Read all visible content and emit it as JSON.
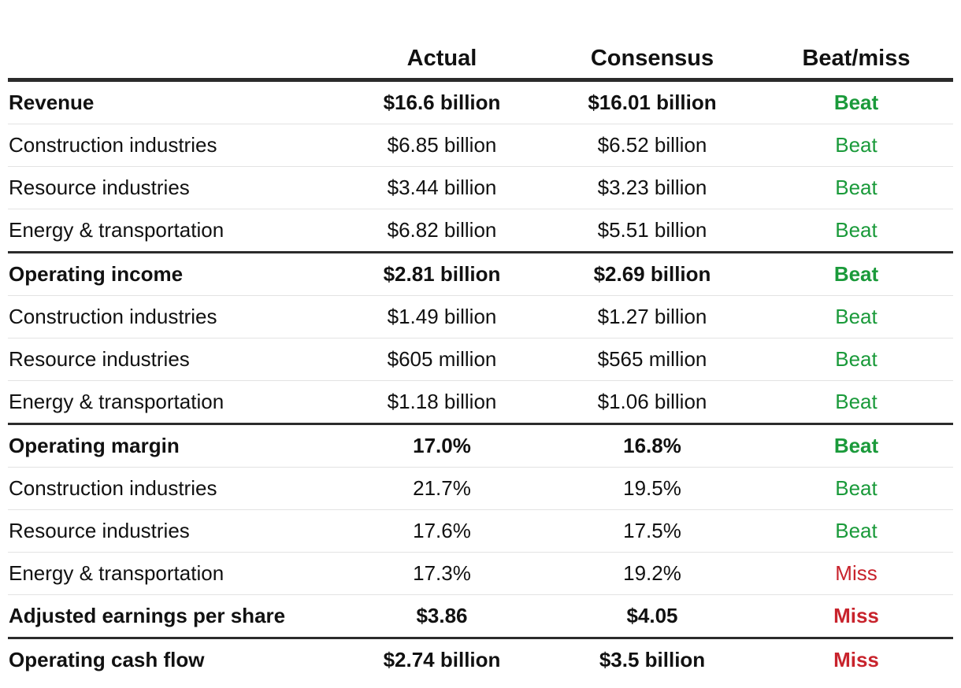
{
  "colors": {
    "beat": "#1a9a3a",
    "miss": "#c8232c",
    "rule_dark": "#2b2b2b",
    "rule_light": "#e3e3e3"
  },
  "headers": {
    "metric": "",
    "actual": "Actual",
    "consensus": "Consensus",
    "result": "Beat/miss"
  },
  "rows": [
    {
      "metric": "Revenue",
      "actual": "$16.6 billion",
      "consensus": "$16.01 billion",
      "result": "Beat",
      "status": "beat",
      "bold": true,
      "group_end": false
    },
    {
      "metric": "Construction industries",
      "actual": "$6.85 billion",
      "consensus": "$6.52 billion",
      "result": "Beat",
      "status": "beat",
      "bold": false,
      "group_end": false
    },
    {
      "metric": "Resource industries",
      "actual": "$3.44 billion",
      "consensus": "$3.23 billion",
      "result": "Beat",
      "status": "beat",
      "bold": false,
      "group_end": false
    },
    {
      "metric": "Energy & transportation",
      "actual": "$6.82 billion",
      "consensus": "$5.51 billion",
      "result": "Beat",
      "status": "beat",
      "bold": false,
      "group_end": true
    },
    {
      "metric": "Operating income",
      "actual": "$2.81 billion",
      "consensus": "$2.69 billion",
      "result": "Beat",
      "status": "beat",
      "bold": true,
      "group_end": false
    },
    {
      "metric": "Construction industries",
      "actual": "$1.49 billion",
      "consensus": "$1.27 billion",
      "result": "Beat",
      "status": "beat",
      "bold": false,
      "group_end": false
    },
    {
      "metric": "Resource industries",
      "actual": "$605 million",
      "consensus": "$565 million",
      "result": "Beat",
      "status": "beat",
      "bold": false,
      "group_end": false
    },
    {
      "metric": "Energy & transportation",
      "actual": "$1.18 billion",
      "consensus": "$1.06 billion",
      "result": "Beat",
      "status": "beat",
      "bold": false,
      "group_end": true
    },
    {
      "metric": "Operating margin",
      "actual": "17.0%",
      "consensus": "16.8%",
      "result": "Beat",
      "status": "beat",
      "bold": true,
      "group_end": false
    },
    {
      "metric": "Construction industries",
      "actual": "21.7%",
      "consensus": "19.5%",
      "result": "Beat",
      "status": "beat",
      "bold": false,
      "group_end": false
    },
    {
      "metric": "Resource industries",
      "actual": "17.6%",
      "consensus": "17.5%",
      "result": "Beat",
      "status": "beat",
      "bold": false,
      "group_end": false
    },
    {
      "metric": "Energy & transportation",
      "actual": "17.3%",
      "consensus": "19.2%",
      "result": "Miss",
      "status": "miss",
      "bold": false,
      "group_end": false
    },
    {
      "metric": "Adjusted earnings per share",
      "actual": "$3.86",
      "consensus": "$4.05",
      "result": "Miss",
      "status": "miss",
      "bold": true,
      "group_end": true
    },
    {
      "metric": "Operating cash flow",
      "actual": "$2.74 billion",
      "consensus": "$3.5 billion",
      "result": "Miss",
      "status": "miss",
      "bold": true,
      "group_end": false,
      "last": true
    }
  ]
}
